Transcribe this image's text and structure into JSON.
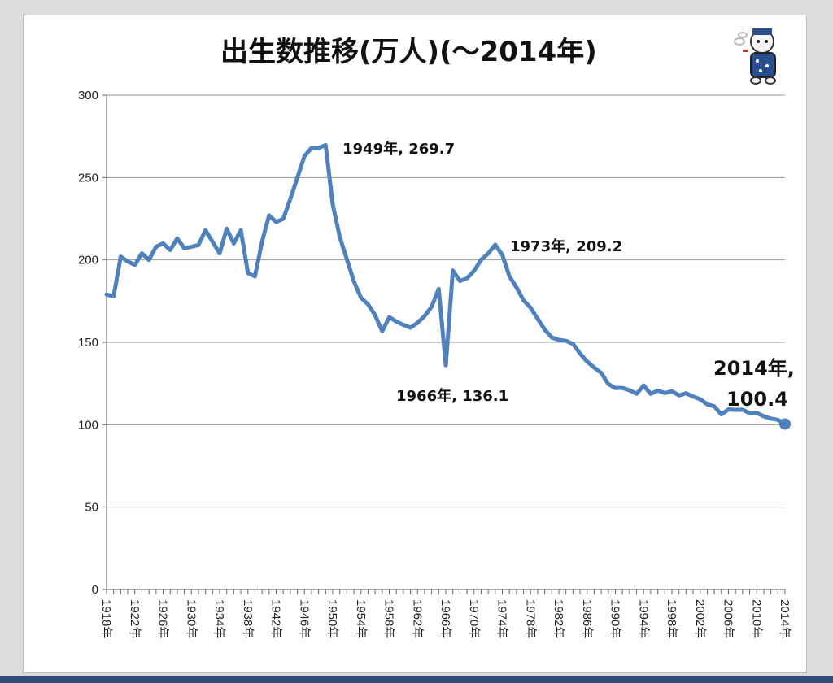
{
  "chart_data": {
    "type": "line",
    "title": "出生数推移(万人)(～2014年)",
    "xlabel": "",
    "ylabel": "",
    "ylim": [
      0,
      300
    ],
    "yticks": [
      0,
      50,
      100,
      150,
      200,
      250,
      300
    ],
    "grid": true,
    "x_tick_labels": [
      "1918年",
      "1922年",
      "1926年",
      "1930年",
      "1934年",
      "1938年",
      "1942年",
      "1946年",
      "1950年",
      "1954年",
      "1958年",
      "1962年",
      "1966年",
      "1970年",
      "1974年",
      "1978年",
      "1982年",
      "1986年",
      "1990年",
      "1994年",
      "1998年",
      "2002年",
      "2006年",
      "2010年",
      "2014年"
    ],
    "x": [
      1918,
      1919,
      1920,
      1921,
      1922,
      1923,
      1924,
      1925,
      1926,
      1927,
      1928,
      1929,
      1930,
      1931,
      1932,
      1933,
      1934,
      1935,
      1936,
      1937,
      1938,
      1939,
      1940,
      1941,
      1942,
      1943,
      1944,
      1945,
      1946,
      1947,
      1948,
      1949,
      1950,
      1951,
      1952,
      1953,
      1954,
      1955,
      1956,
      1957,
      1958,
      1959,
      1960,
      1961,
      1962,
      1963,
      1964,
      1965,
      1966,
      1967,
      1968,
      1969,
      1970,
      1971,
      1972,
      1973,
      1974,
      1975,
      1976,
      1977,
      1978,
      1979,
      1980,
      1981,
      1982,
      1983,
      1984,
      1985,
      1986,
      1987,
      1988,
      1989,
      1990,
      1991,
      1992,
      1993,
      1994,
      1995,
      1996,
      1997,
      1998,
      1999,
      2000,
      2001,
      2002,
      2003,
      2004,
      2005,
      2006,
      2007,
      2008,
      2009,
      2010,
      2011,
      2012,
      2013,
      2014
    ],
    "series": [
      {
        "color": "#4f81bd",
        "values": [
          179,
          178,
          202,
          199,
          197,
          204,
          200,
          208,
          210,
          206,
          213,
          207,
          208,
          209,
          218,
          211,
          204,
          219,
          210,
          218,
          192,
          190,
          211,
          227,
          223,
          225,
          237,
          250,
          263,
          268,
          268,
          269.7,
          233.8,
          213.8,
          200.5,
          186.8,
          177.0,
          173.1,
          166.5,
          156.7,
          165.3,
          162.6,
          160.6,
          158.9,
          161.9,
          165.9,
          171.6,
          182.4,
          136.1,
          193.6,
          187.2,
          188.9,
          193.4,
          200.1,
          203.9,
          209.2,
          203.0,
          190.1,
          183.3,
          175.5,
          170.9,
          164.3,
          157.7,
          152.9,
          151.5,
          150.9,
          149.0,
          143.2,
          138.3,
          134.7,
          131.4,
          124.7,
          122.2,
          122.3,
          120.9,
          118.8,
          123.8,
          118.7,
          120.7,
          119.2,
          120.3,
          117.8,
          119.1,
          117.1,
          115.4,
          112.4,
          111.1,
          106.3,
          109.3,
          109.0,
          109.1,
          107.0,
          107.1,
          105.1,
          103.7,
          103.0,
          100.4
        ]
      }
    ],
    "annotations": [
      {
        "label": "1949年, 269.7"
      },
      {
        "label": "1966年, 136.1"
      },
      {
        "label": "1973年, 209.2"
      },
      {
        "label_line1": "2014年,",
        "label_line2": "100.4"
      }
    ]
  },
  "icon": "cat-mascot-icon"
}
